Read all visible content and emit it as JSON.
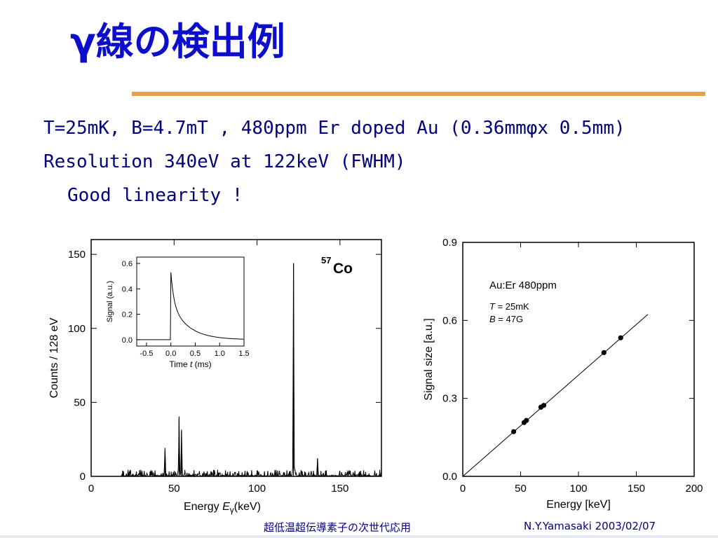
{
  "slide": {
    "title": "γ線の検出例",
    "bullets": [
      "T=25mK, B=4.7mT , 480ppm Er doped Au (0.36mmφx 0.5mm)",
      "Resolution 340eV at 122keV (FWHM)",
      "Good linearity !"
    ],
    "footer_topic": "超低温超伝導素子の次世代応用",
    "footer_author": "N.Y.Yamasaki 2003/02/07",
    "accent_color": "#e8a04a",
    "title_color": "#0d0dcc",
    "text_color": "#000080"
  },
  "chart_data": [
    {
      "type": "line",
      "annotation_isotope": "57",
      "annotation_element": "Co",
      "xlabel_prefix": "Energy",
      "xlabel_var": "E",
      "xlabel_sub": "γ",
      "xlabel_unit": "(keV)",
      "ylabel": "Counts / 128 eV",
      "xlim": [
        0,
        175
      ],
      "ylim": [
        0,
        160
      ],
      "xticks": [
        "0",
        "50",
        "100",
        "150"
      ],
      "yticks": [
        "0",
        "50",
        "100",
        "150"
      ],
      "peaks": [
        {
          "x": 44.5,
          "y": 16
        },
        {
          "x": 53,
          "y": 39
        },
        {
          "x": 54.5,
          "y": 31
        },
        {
          "x": 122,
          "y": 144
        },
        {
          "x": 136.5,
          "y": 12
        }
      ],
      "background_level": 2,
      "inset": {
        "type": "line",
        "xlabel_prefix": "Time",
        "xlabel_var": "t",
        "xlabel_unit": "(ms)",
        "ylabel": "Signal (a.u.)",
        "xlim": [
          -0.7,
          1.5
        ],
        "ylim": [
          -0.05,
          0.65
        ],
        "xticks": [
          "-0.5",
          "0.0",
          "0.5",
          "1.0",
          "1.5"
        ],
        "yticks": [
          "0.0",
          "0.2",
          "0.4",
          "0.6"
        ],
        "pulse_peak": 0.53,
        "decay_ms": 0.35
      }
    },
    {
      "type": "scatter",
      "title": "Au:Er 480ppm",
      "annotation_T": "25mK",
      "annotation_B": "47G",
      "xlabel": "Energy  [keV]",
      "ylabel": "Signal size  [a.u.]",
      "xlim": [
        0,
        200
      ],
      "ylim": [
        0,
        0.9
      ],
      "xticks": [
        "0",
        "50",
        "100",
        "150",
        "200"
      ],
      "yticks": [
        "0.0",
        "0.3",
        "0.6",
        "0.9"
      ],
      "points": [
        {
          "x": 44,
          "y": 0.172
        },
        {
          "x": 53,
          "y": 0.207
        },
        {
          "x": 55,
          "y": 0.215
        },
        {
          "x": 67.5,
          "y": 0.266
        },
        {
          "x": 70,
          "y": 0.273
        },
        {
          "x": 122,
          "y": 0.476
        },
        {
          "x": 136.5,
          "y": 0.533
        }
      ],
      "fit_line": {
        "x": [
          0,
          160
        ],
        "y": [
          0,
          0.623
        ]
      }
    }
  ]
}
